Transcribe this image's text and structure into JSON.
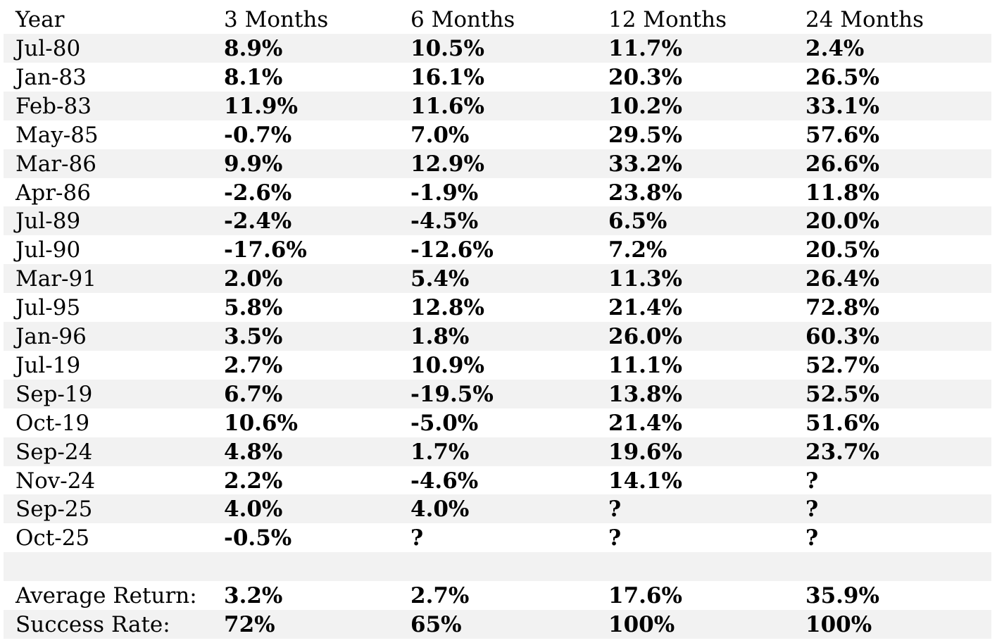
{
  "table": {
    "header": [
      "Year",
      "3 Months",
      "6 Months",
      "12 Months",
      "24 Months"
    ],
    "rows": [
      [
        "Jul-80",
        "8.9%",
        "10.5%",
        "11.7%",
        "2.4%"
      ],
      [
        "Jan-83",
        "8.1%",
        "16.1%",
        "20.3%",
        "26.5%"
      ],
      [
        "Feb-83",
        "11.9%",
        "11.6%",
        "10.2%",
        "33.1%"
      ],
      [
        "May-85",
        "-0.7%",
        "7.0%",
        "29.5%",
        "57.6%"
      ],
      [
        "Mar-86",
        "9.9%",
        "12.9%",
        "33.2%",
        "26.6%"
      ],
      [
        "Apr-86",
        "-2.6%",
        "-1.9%",
        "23.8%",
        "11.8%"
      ],
      [
        "Jul-89",
        "-2.4%",
        "-4.5%",
        "6.5%",
        "20.0%"
      ],
      [
        "Jul-90",
        "-17.6%",
        "-12.6%",
        "7.2%",
        "20.5%"
      ],
      [
        "Mar-91",
        "2.0%",
        "5.4%",
        "11.3%",
        "26.4%"
      ],
      [
        "Jul-95",
        "5.8%",
        "12.8%",
        "21.4%",
        "72.8%"
      ],
      [
        "Jan-96",
        "3.5%",
        "1.8%",
        "26.0%",
        "60.3%"
      ],
      [
        "Jul-19",
        "2.7%",
        "10.9%",
        "11.1%",
        "52.7%"
      ],
      [
        "Sep-19",
        "6.7%",
        "-19.5%",
        "13.8%",
        "52.5%"
      ],
      [
        "Oct-19",
        "10.6%",
        "-5.0%",
        "21.4%",
        "51.6%"
      ],
      [
        "Sep-24",
        "4.8%",
        "1.7%",
        "19.6%",
        "23.7%"
      ],
      [
        "Nov-24",
        "2.2%",
        "-4.6%",
        "14.1%",
        "?"
      ],
      [
        "Sep-25",
        "4.0%",
        "4.0%",
        "?",
        "?"
      ],
      [
        "Oct-25",
        "-0.5%",
        "?",
        "?",
        "?"
      ]
    ],
    "summary": [
      [
        "Average Return:",
        "3.2%",
        "2.7%",
        "17.6%",
        "35.9%"
      ],
      [
        "Success Rate:",
        "72%",
        "65%",
        "100%",
        "100%"
      ]
    ]
  }
}
